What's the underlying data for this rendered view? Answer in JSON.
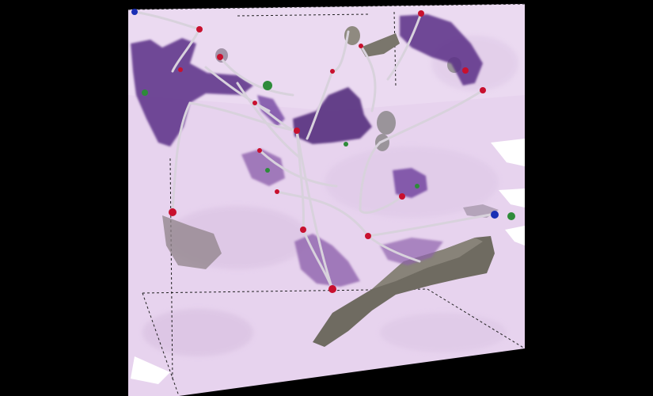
{
  "scene": {
    "background": "#000000",
    "volume_fill": "#e7d3ee",
    "volume_shadow": "#d9c2e2",
    "purple_structure": "#5b2f86",
    "purple_light": "#8e63ad",
    "gray_structure": "#6f6b61",
    "gray_light": "#8f8a80",
    "tube": "#d8d2dc",
    "node_red": "#c8102e",
    "node_green": "#2e8b3a",
    "node_blue": "#1a2fb5"
  }
}
